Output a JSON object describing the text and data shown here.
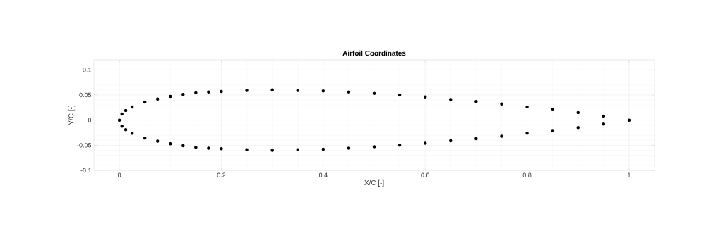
{
  "chart_data": {
    "type": "scatter",
    "title": "Airfoil Coordinates",
    "xlabel": "X/C [-]",
    "ylabel": "Y/C [-]",
    "x": [
      0,
      0.005,
      0.0125,
      0.025,
      0.05,
      0.075,
      0.1,
      0.125,
      0.15,
      0.175,
      0.2,
      0.25,
      0.3,
      0.35,
      0.4,
      0.45,
      0.5,
      0.55,
      0.6,
      0.65,
      0.7,
      0.75,
      0.8,
      0.85,
      0.9,
      0.95,
      1,
      0.005,
      0.0125,
      0.025,
      0.05,
      0.075,
      0.1,
      0.125,
      0.15,
      0.175,
      0.2,
      0.25,
      0.3,
      0.35,
      0.4,
      0.45,
      0.5,
      0.55,
      0.6,
      0.65,
      0.7,
      0.75,
      0.8,
      0.85,
      0.9,
      0.95
    ],
    "series": [
      {
        "color": "#000000",
        "values": [
          0,
          0.012,
          0.019,
          0.026,
          0.036,
          0.042,
          0.047,
          0.051,
          0.054,
          0.056,
          0.057,
          0.059,
          0.06,
          0.059,
          0.058,
          0.056,
          0.053,
          0.05,
          0.046,
          0.041,
          0.037,
          0.032,
          0.026,
          0.021,
          0.015,
          0.008,
          0,
          -0.012,
          -0.019,
          -0.026,
          -0.036,
          -0.042,
          -0.047,
          -0.051,
          -0.054,
          -0.056,
          -0.057,
          -0.059,
          -0.06,
          -0.059,
          -0.058,
          -0.056,
          -0.053,
          -0.05,
          -0.046,
          -0.041,
          -0.037,
          -0.032,
          -0.026,
          -0.021,
          -0.015,
          -0.008
        ]
      }
    ],
    "xlim": [
      -0.05,
      1.05
    ],
    "ylim": [
      -0.1,
      0.12
    ],
    "xticks": [
      0,
      0.2,
      0.4,
      0.6,
      0.8,
      1
    ],
    "yticks": [
      -0.1,
      -0.05,
      0,
      0.05,
      0.1
    ],
    "grid": true
  }
}
